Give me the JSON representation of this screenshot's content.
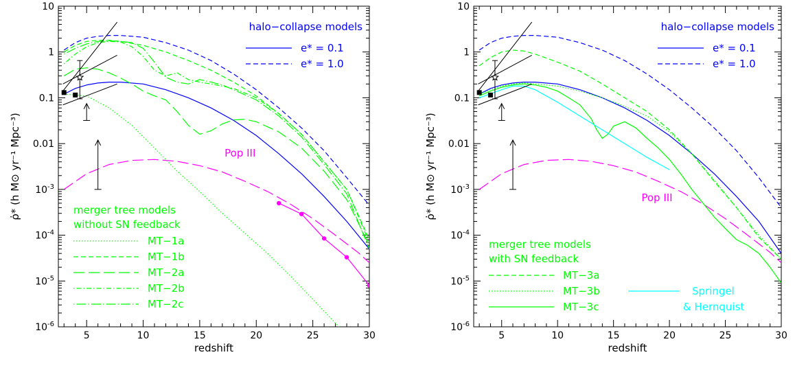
{
  "chart_data": [
    {
      "type": "line",
      "xlabel": "redshift",
      "ylabel": "ρ̇* (h M⊙ yr⁻¹ Mpc⁻³)",
      "xlim": [
        2.5,
        30
      ],
      "ylim": [
        1e-06,
        10
      ],
      "yscale": "log",
      "x_ticks": [
        5,
        10,
        15,
        20,
        25,
        30
      ],
      "y_ticks": [
        {
          "v": 10,
          "label": "10"
        },
        {
          "v": 1,
          "label": "1"
        },
        {
          "v": 0.1,
          "label": "0.1"
        },
        {
          "v": 0.01,
          "label": "0.01"
        },
        {
          "v": 0.001,
          "label": "10-3"
        },
        {
          "v": 0.0001,
          "label": "10-4"
        },
        {
          "v": 1e-05,
          "label": "10-5"
        },
        {
          "v": 1e-06,
          "label": "10-6"
        }
      ],
      "annotations": [
        {
          "text": "halo−collapse models",
          "color": "#0000ff",
          "at": "top-right"
        },
        {
          "text": "Pop III",
          "color": "#ff00ff"
        },
        {
          "text": "merger tree models",
          "color": "#00ff00"
        },
        {
          "text": "without SN feedback",
          "color": "#00ff00"
        }
      ],
      "legend_halo": [
        {
          "name": "e* = 0.1",
          "dash": "solid",
          "color": "#0000ff"
        },
        {
          "name": "e* = 1.0",
          "dash": "dashed",
          "color": "#0000ff"
        }
      ],
      "legend_mt": [
        {
          "name": "MT−1a",
          "dash": "dotted"
        },
        {
          "name": "MT−1b",
          "dash": "dashed"
        },
        {
          "name": "MT−2a",
          "dash": "longdash"
        },
        {
          "name": "MT−2b",
          "dash": "dotdash"
        },
        {
          "name": "MT−2c",
          "dash": "dotlongdash"
        }
      ],
      "series": [
        {
          "id": "halo_e01",
          "color": "#0000ff",
          "dash": "solid",
          "x": [
            3,
            4,
            5,
            6,
            7,
            8,
            10,
            12,
            14,
            16,
            18,
            20,
            22,
            24,
            26,
            28,
            30
          ],
          "y": [
            0.12,
            0.16,
            0.19,
            0.21,
            0.22,
            0.22,
            0.2,
            0.15,
            0.1,
            0.06,
            0.032,
            0.015,
            0.006,
            0.0022,
            0.0007,
            0.0002,
            5e-05
          ]
        },
        {
          "id": "halo_e10",
          "color": "#0000ff",
          "dash": "dashed",
          "x": [
            3,
            4,
            5,
            6,
            7,
            8,
            10,
            12,
            14,
            16,
            18,
            20,
            22,
            24,
            26,
            28,
            30
          ],
          "y": [
            1.1,
            1.6,
            2,
            2.2,
            2.3,
            2.3,
            2.1,
            1.6,
            1.1,
            0.65,
            0.33,
            0.15,
            0.06,
            0.022,
            0.007,
            0.0018,
            0.00045
          ]
        },
        {
          "id": "pop3",
          "color": "#ff00ff",
          "dash": "longdash",
          "x": [
            3,
            5,
            7,
            9,
            11,
            13,
            15,
            17,
            19,
            21,
            23,
            25,
            27,
            29,
            30
          ],
          "y": [
            0.001,
            0.0022,
            0.0035,
            0.0043,
            0.0045,
            0.0041,
            0.0033,
            0.0024,
            0.0015,
            0.0009,
            0.00048,
            0.00023,
            0.0001,
            4.2e-05,
            2.5e-05
          ]
        },
        {
          "id": "pop3_points",
          "color": "#ff00ff",
          "dash": "solid",
          "markers": true,
          "x": [
            22,
            24,
            26,
            28,
            30
          ],
          "y": [
            0.0005,
            0.00029,
            8.5e-05,
            3.3e-05,
            8e-06
          ]
        },
        {
          "id": "MT-1a",
          "color": "#00ff00",
          "dash": "dotted",
          "x": [
            3,
            5,
            7,
            9,
            11,
            13,
            15,
            17,
            19,
            21,
            23,
            25,
            27,
            28
          ],
          "y": [
            0.12,
            0.11,
            0.06,
            0.025,
            0.008,
            0.0025,
            0.0009,
            0.0003,
            0.00011,
            4e-05,
            1.3e-05,
            4e-06,
            1.2e-06,
            7e-07
          ]
        },
        {
          "id": "MT-1b",
          "color": "#00ff00",
          "dash": "dashed",
          "x": [
            3,
            4,
            5,
            6,
            7,
            8,
            10,
            12,
            14,
            16,
            18,
            20,
            22,
            24,
            26,
            28,
            30
          ],
          "y": [
            1,
            1.4,
            1.7,
            1.8,
            1.8,
            1.7,
            1.4,
            1,
            0.65,
            0.4,
            0.22,
            0.11,
            0.045,
            0.016,
            0.004,
            0.001,
            8e-05
          ]
        },
        {
          "id": "MT-2a",
          "color": "#00ff00",
          "dash": "longdash",
          "x": [
            3,
            4,
            5,
            6,
            7,
            8,
            9,
            10,
            11,
            12,
            13,
            14,
            15,
            16,
            17,
            18,
            19,
            20,
            22,
            24,
            26,
            28,
            30
          ],
          "y": [
            0.3,
            0.42,
            0.45,
            0.42,
            0.35,
            0.27,
            0.2,
            0.14,
            0.11,
            0.09,
            0.05,
            0.025,
            0.016,
            0.019,
            0.027,
            0.033,
            0.034,
            0.03,
            0.018,
            0.008,
            0.0025,
            0.0006,
            6e-05
          ]
        },
        {
          "id": "MT-2b",
          "color": "#00ff00",
          "dash": "dotdash",
          "x": [
            3,
            4,
            5,
            6,
            7,
            8,
            9,
            10,
            11,
            12,
            13,
            14,
            15,
            16,
            17,
            18,
            20,
            22,
            24,
            26,
            28,
            30
          ],
          "y": [
            0.55,
            0.9,
            1.3,
            1.6,
            1.7,
            1.65,
            1.3,
            0.8,
            0.4,
            0.3,
            0.35,
            0.25,
            0.22,
            0.2,
            0.18,
            0.16,
            0.1,
            0.045,
            0.016,
            0.004,
            0.001,
            7e-05
          ]
        },
        {
          "id": "MT-2c",
          "color": "#00ff00",
          "dash": "dotlongdash",
          "x": [
            3,
            4,
            5,
            6,
            7,
            8,
            9,
            10,
            11,
            12,
            13,
            14,
            15,
            16,
            17,
            18,
            20,
            22,
            24,
            26,
            28,
            30
          ],
          "y": [
            0.9,
            1.2,
            1.5,
            1.7,
            1.75,
            1.7,
            1.6,
            1.2,
            0.6,
            0.28,
            0.22,
            0.2,
            0.25,
            0.22,
            0.19,
            0.15,
            0.09,
            0.04,
            0.014,
            0.0035,
            0.0008,
            5e-05
          ]
        }
      ]
    },
    {
      "type": "line",
      "xlabel": "redshift",
      "ylabel": "ρ̇* (h M⊙ yr⁻¹ Mpc⁻³)",
      "xlim": [
        2.5,
        30
      ],
      "ylim": [
        1e-06,
        10
      ],
      "yscale": "log",
      "x_ticks": [
        5,
        10,
        15,
        20,
        25,
        30
      ],
      "y_ticks": [
        {
          "v": 10,
          "label": "10"
        },
        {
          "v": 1,
          "label": "1"
        },
        {
          "v": 0.1,
          "label": "0.1"
        },
        {
          "v": 0.01,
          "label": "0.01"
        },
        {
          "v": 0.001,
          "label": "10-3"
        },
        {
          "v": 0.0001,
          "label": "10-4"
        },
        {
          "v": 1e-05,
          "label": "10-5"
        },
        {
          "v": 1e-06,
          "label": "10-6"
        }
      ],
      "annotations": [
        {
          "text": "halo−collapse models",
          "color": "#0000ff",
          "at": "top-right"
        },
        {
          "text": "Pop III",
          "color": "#ff00ff"
        },
        {
          "text": "merger tree models",
          "color": "#00ff00"
        },
        {
          "text": "with SN feedback",
          "color": "#00ff00"
        }
      ],
      "legend_halo": [
        {
          "name": "e* = 0.1",
          "dash": "solid",
          "color": "#0000ff"
        },
        {
          "name": "e* = 1.0",
          "dash": "dashed",
          "color": "#0000ff"
        }
      ],
      "legend_mt": [
        {
          "name": "MT−3a",
          "dash": "dashed"
        },
        {
          "name": "MT−3b",
          "dash": "dotted"
        },
        {
          "name": "MT−3c",
          "dash": "solid"
        }
      ],
      "legend_sh": {
        "name_line1": "Springel",
        "name_line2": "& Hernquist",
        "color": "#00ffff"
      },
      "series": [
        {
          "id": "halo_e01",
          "color": "#0000ff",
          "dash": "solid",
          "x": [
            3,
            4,
            5,
            6,
            7,
            8,
            10,
            12,
            14,
            16,
            18,
            20,
            22,
            24,
            26,
            28,
            30
          ],
          "y": [
            0.12,
            0.16,
            0.19,
            0.21,
            0.22,
            0.22,
            0.2,
            0.15,
            0.1,
            0.06,
            0.032,
            0.015,
            0.006,
            0.0022,
            0.0007,
            0.0002,
            4e-05
          ]
        },
        {
          "id": "halo_e10",
          "color": "#0000ff",
          "dash": "dashed",
          "x": [
            3,
            4,
            5,
            6,
            7,
            8,
            10,
            12,
            14,
            16,
            18,
            20,
            22,
            24,
            26,
            28,
            30
          ],
          "y": [
            1.1,
            1.6,
            2,
            2.2,
            2.3,
            2.3,
            2.1,
            1.6,
            1.1,
            0.65,
            0.33,
            0.15,
            0.06,
            0.022,
            0.007,
            0.0018,
            0.0004
          ]
        },
        {
          "id": "pop3",
          "color": "#ff00ff",
          "dash": "longdash",
          "x": [
            3,
            5,
            7,
            9,
            11,
            13,
            15,
            17,
            19,
            21,
            23,
            25,
            27,
            29,
            30
          ],
          "y": [
            0.001,
            0.0022,
            0.0035,
            0.0043,
            0.0045,
            0.0041,
            0.0033,
            0.0024,
            0.0015,
            0.0009,
            0.00048,
            0.00023,
            0.0001,
            4.2e-05,
            2.5e-05
          ]
        },
        {
          "id": "MT-3a",
          "color": "#00ff00",
          "dash": "dashed",
          "x": [
            3,
            4,
            5,
            6,
            7,
            8,
            10,
            12,
            14,
            16,
            18,
            20,
            22,
            24,
            26,
            28,
            30
          ],
          "y": [
            0.5,
            0.75,
            1,
            1.1,
            1.05,
            0.9,
            0.6,
            0.38,
            0.2,
            0.1,
            0.05,
            0.02,
            0.006,
            0.0015,
            0.0004,
            9e-05,
            3e-05
          ]
        },
        {
          "id": "MT-3b",
          "color": "#00ff00",
          "dash": "dotted",
          "x": [
            3,
            4,
            5,
            6,
            7,
            8,
            10,
            12,
            14,
            16,
            18,
            20,
            22,
            24,
            26,
            28,
            30
          ],
          "y": [
            0.12,
            0.15,
            0.18,
            0.2,
            0.21,
            0.2,
            0.18,
            0.14,
            0.1,
            0.065,
            0.04,
            0.018,
            0.006,
            0.0016,
            0.0004,
            0.0001,
            3e-05
          ]
        },
        {
          "id": "MT-3c",
          "color": "#00ff00",
          "dash": "solid",
          "x": [
            3,
            4,
            5,
            6,
            7,
            8,
            9,
            10,
            11,
            12,
            13,
            13.5,
            14,
            14.5,
            15,
            16,
            17,
            18,
            19,
            20,
            21,
            22,
            23,
            24,
            25,
            26,
            27,
            28,
            29,
            30
          ],
          "y": [
            0.11,
            0.14,
            0.17,
            0.19,
            0.2,
            0.19,
            0.17,
            0.14,
            0.1,
            0.07,
            0.035,
            0.02,
            0.013,
            0.016,
            0.024,
            0.03,
            0.022,
            0.013,
            0.008,
            0.0045,
            0.0022,
            0.001,
            0.0005,
            0.00025,
            0.00014,
            8e-05,
            6e-05,
            4e-05,
            2e-05,
            9e-06
          ]
        },
        {
          "id": "springel_hernquist",
          "color": "#00ffff",
          "dash": "solid",
          "x": [
            3,
            5,
            6,
            7,
            8,
            10,
            12,
            14,
            16,
            18,
            20
          ],
          "y": [
            0.1,
            0.15,
            0.18,
            0.18,
            0.15,
            0.08,
            0.04,
            0.02,
            0.01,
            0.005,
            0.0027
          ]
        }
      ]
    }
  ]
}
